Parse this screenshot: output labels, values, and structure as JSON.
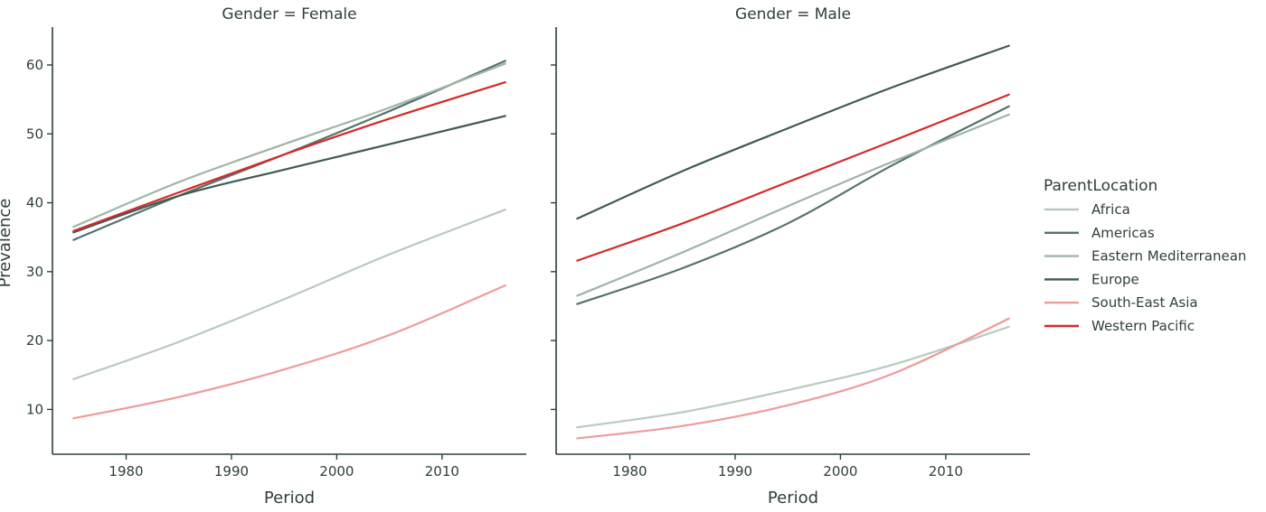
{
  "chart_data": {
    "type": "line",
    "ylabel": "Prevalence",
    "xlabel": "Period",
    "x_ticks": [
      1980,
      1990,
      2000,
      2010
    ],
    "y_ticks": [
      10,
      20,
      30,
      40,
      50,
      60
    ],
    "xlim": [
      1973,
      2018
    ],
    "ylim": [
      3.5,
      65.5
    ],
    "legend": {
      "title": "ParentLocation",
      "placement": "right",
      "entries": [
        {
          "name": "Africa",
          "color": "#b9cabd"
        },
        {
          "name": "Americas",
          "color": "#55736d"
        },
        {
          "name": "Eastern Mediterranean",
          "color": "#9fb4a6"
        },
        {
          "name": "Europe",
          "color": "#3f5a55"
        },
        {
          "name": "South-East Asia",
          "color": "#ee9b9b"
        },
        {
          "name": "Western Pacific",
          "color": "#d42a2a"
        }
      ]
    },
    "panels": [
      {
        "title": "Gender = Female",
        "series": [
          {
            "name": "Africa",
            "x": [
              1975,
              1985,
              1995,
              2005,
              2016
            ],
            "y": [
              14.4,
              19.8,
              26.0,
              32.5,
              39.0
            ]
          },
          {
            "name": "Americas",
            "x": [
              1975,
              1985,
              1995,
              2005,
              2016
            ],
            "y": [
              34.6,
              41.0,
              47.0,
              53.3,
              60.6
            ]
          },
          {
            "name": "Eastern Mediterranean",
            "x": [
              1975,
              1985,
              1995,
              2005,
              2016
            ],
            "y": [
              36.5,
              43.0,
              48.5,
              53.8,
              60.2
            ]
          },
          {
            "name": "Europe",
            "x": [
              1975,
              1985,
              1995,
              2005,
              2016
            ],
            "y": [
              35.7,
              41.0,
              44.8,
              48.5,
              52.6
            ]
          },
          {
            "name": "South-East Asia",
            "x": [
              1975,
              1985,
              1995,
              2005,
              2016
            ],
            "y": [
              8.7,
              11.8,
              15.8,
              20.8,
              28.0
            ]
          },
          {
            "name": "Western Pacific",
            "x": [
              1975,
              1985,
              1995,
              2005,
              2016
            ],
            "y": [
              35.9,
              41.5,
              47.0,
              52.2,
              57.5
            ]
          }
        ]
      },
      {
        "title": "Gender = Male",
        "series": [
          {
            "name": "Africa",
            "x": [
              1975,
              1985,
              1995,
              2005,
              2016
            ],
            "y": [
              7.4,
              9.6,
              12.8,
              16.5,
              22.0
            ]
          },
          {
            "name": "Americas",
            "x": [
              1975,
              1985,
              1995,
              2005,
              2016
            ],
            "y": [
              25.3,
              30.5,
              37.0,
              45.5,
              54.0
            ]
          },
          {
            "name": "Eastern Mediterranean",
            "x": [
              1975,
              1985,
              1995,
              2005,
              2016
            ],
            "y": [
              26.5,
              32.8,
              39.5,
              46.0,
              52.8
            ]
          },
          {
            "name": "Europe",
            "x": [
              1975,
              1985,
              1995,
              2005,
              2016
            ],
            "y": [
              37.7,
              44.6,
              50.8,
              56.8,
              62.8
            ]
          },
          {
            "name": "South-East Asia",
            "x": [
              1975,
              1985,
              1995,
              2005,
              2016
            ],
            "y": [
              5.8,
              7.6,
              10.6,
              15.2,
              23.2
            ]
          },
          {
            "name": "Western Pacific",
            "x": [
              1975,
              1985,
              1995,
              2005,
              2016
            ],
            "y": [
              31.6,
              37.0,
              43.0,
              49.0,
              55.7
            ]
          }
        ]
      }
    ]
  }
}
